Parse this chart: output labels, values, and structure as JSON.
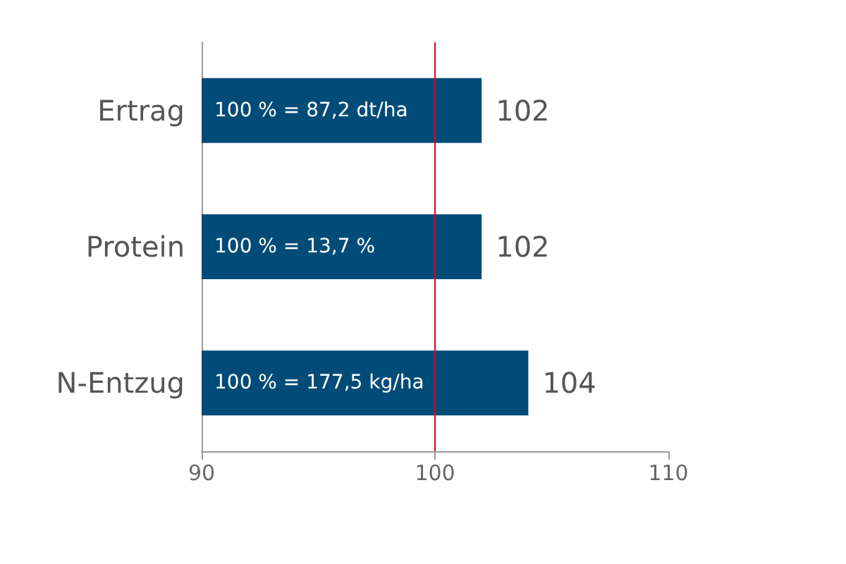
{
  "chart_data": {
    "type": "bar",
    "orientation": "horizontal",
    "categories": [
      "Ertrag",
      "Protein",
      "N-Entzug"
    ],
    "values": [
      102,
      102,
      104
    ],
    "color": "#004b78",
    "data_labels": true,
    "xlim": [
      90,
      110
    ],
    "xticks": [
      90,
      100,
      110
    ],
    "grid": false,
    "ref_lines": [
      {
        "axis": "x",
        "value": 100,
        "color": "#e2001a"
      }
    ],
    "annotations": [
      "100 % = 87,2 dt/ha",
      "100 % = 13,7 %",
      "100 % = 177,5 kg/ha"
    ]
  }
}
